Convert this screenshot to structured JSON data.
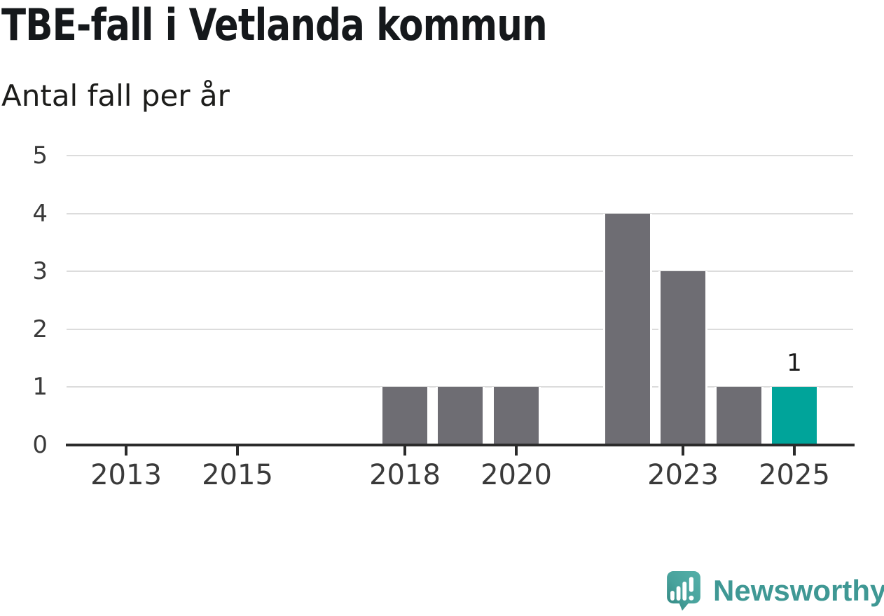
{
  "header": {
    "title": "TBE-fall i Vetlanda kommun",
    "subtitle": "Antal fall per år"
  },
  "colors": {
    "bar_default": "#6e6d73",
    "bar_highlight": "#00a49a",
    "axis": "#2b2b2b",
    "gridline": "#dcdcdc",
    "tick_label": "#3a3a3a",
    "title_text": "#15181b",
    "logo_teal": "#3f9894",
    "logo_bubble_light": "#52aca6",
    "logo_bubble_dark": "#33837e",
    "background": "#ffffff"
  },
  "chart_data": {
    "type": "bar",
    "title": "TBE-fall i Vetlanda kommun",
    "subtitle": "Antal fall per år",
    "xlabel": "",
    "ylabel": "Antal fall per år",
    "categories": [
      "2013",
      "2014",
      "2015",
      "2016",
      "2017",
      "2018",
      "2019",
      "2020",
      "2021",
      "2022",
      "2023",
      "2024",
      "2025"
    ],
    "values": [
      0,
      0,
      0,
      0,
      0,
      1,
      1,
      1,
      0,
      4,
      3,
      1,
      1
    ],
    "highlight_category": "2025",
    "annotated_value": {
      "category": "2025",
      "label": "1"
    },
    "x_tick_labels": [
      "2013",
      "2015",
      "2018",
      "2020",
      "2023",
      "2025"
    ],
    "y_tick_labels": [
      "0",
      "1",
      "2",
      "3",
      "4",
      "5"
    ],
    "ylim": [
      0,
      5
    ],
    "grid": "horizontal",
    "legend": "none"
  },
  "footer": {
    "logo_text": "Newsworthy",
    "logo_icon": "newsworthy-speech-bubble-chart-icon"
  }
}
